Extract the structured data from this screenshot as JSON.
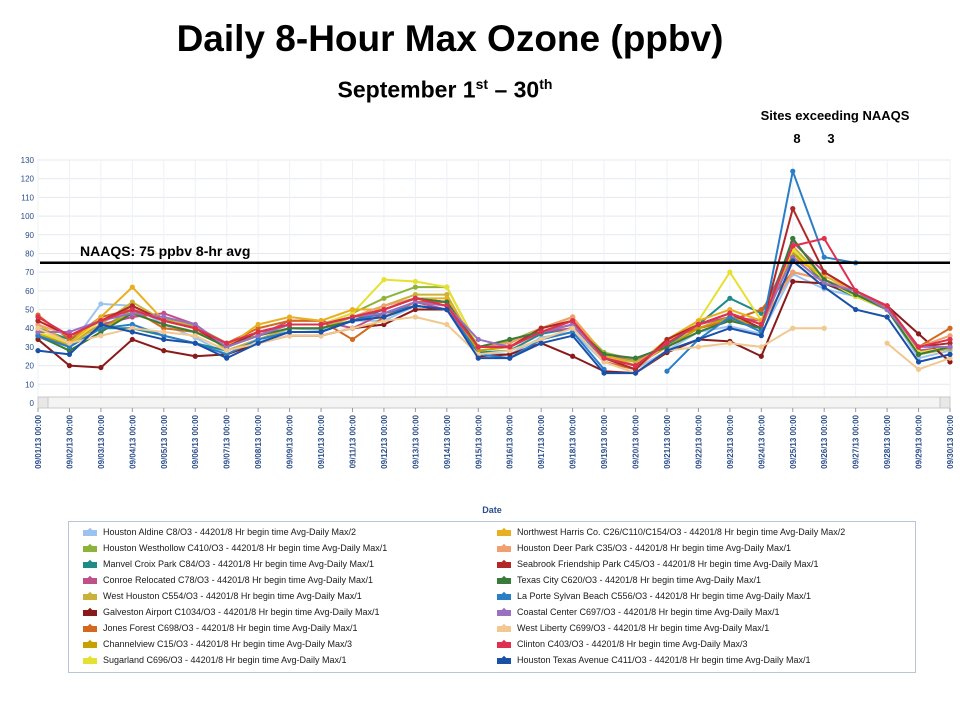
{
  "header": {
    "title": "Daily 8-Hour Max Ozone (ppbv)",
    "subtitle_main": "September 1",
    "subtitle_sup1": "st",
    "subtitle_mid": " – 30",
    "subtitle_sup2": "th",
    "exceed_label": "Sites exceeding NAAQS",
    "exceed_values": [
      "8",
      "3"
    ]
  },
  "chart_data": {
    "type": "line",
    "xlabel": "Date",
    "ylabel": "",
    "ylim": [
      0,
      130
    ],
    "yticks": [
      0,
      10,
      20,
      30,
      40,
      50,
      60,
      70,
      80,
      90,
      100,
      110,
      120,
      130
    ],
    "grid": true,
    "legend_position": "bottom",
    "categories": [
      "09/01/13 00:00",
      "09/02/13 00:00",
      "09/03/13 00:00",
      "09/04/13 00:00",
      "09/05/13 00:00",
      "09/06/13 00:00",
      "09/07/13 00:00",
      "09/08/13 00:00",
      "09/09/13 00:00",
      "09/10/13 00:00",
      "09/11/13 00:00",
      "09/12/13 00:00",
      "09/13/13 00:00",
      "09/14/13 00:00",
      "09/15/13 00:00",
      "09/16/13 00:00",
      "09/17/13 00:00",
      "09/18/13 00:00",
      "09/19/13 00:00",
      "09/20/13 00:00",
      "09/21/13 00:00",
      "09/22/13 00:00",
      "09/23/13 00:00",
      "09/24/13 00:00",
      "09/25/13 00:00",
      "09/26/13 00:00",
      "09/27/13 00:00",
      "09/28/13 00:00",
      "09/29/13 00:00",
      "09/30/13 00:00"
    ],
    "reference_line": {
      "value": 75,
      "label": "NAAQS:  75 ppbv   8-hr avg"
    },
    "series": [
      {
        "name": "Houston Aldine C8/O3 - 44201/8 Hr begin time Avg-Daily Max/2",
        "color": "#9cc3f0",
        "values": [
          35,
          30,
          53,
          52,
          42,
          35,
          26,
          32,
          40,
          39,
          44,
          44,
          52,
          50,
          27,
          26,
          35,
          38,
          22,
          18,
          28,
          38,
          41,
          37,
          69,
          61,
          57,
          50,
          24,
          28
        ]
      },
      {
        "name": "Houston Westhollow C410/O3 - 44201/8 Hr begin time Avg-Daily Max/1",
        "color": "#8db33a",
        "values": [
          36,
          30,
          40,
          50,
          45,
          41,
          32,
          36,
          42,
          42,
          48,
          56,
          62,
          62,
          30,
          33,
          40,
          44,
          27,
          23,
          30,
          40,
          44,
          40,
          88,
          66,
          58,
          51,
          28,
          30
        ]
      },
      {
        "name": "Manvel Croix Park C84/O3 - 44201/8 Hr begin time Avg-Daily Max/1",
        "color": "#1e8a8a",
        "values": [
          40,
          34,
          40,
          40,
          36,
          32,
          28,
          34,
          38,
          38,
          44,
          46,
          52,
          50,
          27,
          28,
          37,
          40,
          24,
          20,
          31,
          42,
          56,
          48,
          82,
          64,
          57,
          50,
          26,
          30
        ]
      },
      {
        "name": "Conroe Relocated C78/O3 - 44201/8 Hr begin time Avg-Daily Max/1",
        "color": "#c0508a",
        "values": [
          36,
          32,
          42,
          46,
          48,
          42,
          30,
          36,
          44,
          44,
          40,
          48,
          54,
          50,
          30,
          30,
          38,
          40,
          26,
          22,
          32,
          42,
          46,
          44,
          86,
          70,
          60,
          52,
          28,
          30
        ]
      },
      {
        "name": "West Houston C554/O3 - 44201/8 Hr begin time Avg-Daily Max/1",
        "color": "#c8b23a",
        "values": [
          37,
          31,
          42,
          54,
          44,
          42,
          28,
          34,
          40,
          40,
          46,
          52,
          58,
          58,
          28,
          30,
          38,
          42,
          25,
          22,
          30,
          40,
          45,
          40,
          84,
          66,
          58,
          51,
          26,
          29
        ]
      },
      {
        "name": "Galveston Airport C1034/O3 - 44201/8 Hr begin time Avg-Daily Max/1",
        "color": "#8a1a1a",
        "values": [
          34,
          20,
          19,
          34,
          28,
          25,
          26,
          32,
          36,
          36,
          40,
          42,
          50,
          50,
          25,
          26,
          32,
          25,
          17,
          16,
          27,
          34,
          33,
          25,
          65,
          64,
          58,
          52,
          37,
          22
        ]
      },
      {
        "name": "Jones Forest C698/O3 - 44201/8 Hr begin time Avg-Daily Max/1",
        "color": "#d2691e",
        "values": [
          47,
          34,
          46,
          50,
          40,
          38,
          32,
          40,
          44,
          44,
          34,
          46,
          54,
          54,
          30,
          30,
          40,
          46,
          22,
          18,
          34,
          40,
          44,
          50,
          70,
          66,
          58,
          52,
          30,
          40
        ]
      },
      {
        "name": "Channelview C15/O3 - 44201/8 Hr begin time Avg-Daily Max/3",
        "color": "#c8a000",
        "values": [
          38,
          30,
          40,
          48,
          42,
          38,
          30,
          36,
          42,
          42,
          46,
          50,
          56,
          54,
          28,
          30,
          38,
          44,
          26,
          20,
          30,
          40,
          46,
          40,
          80,
          66,
          58,
          50,
          26,
          30
        ]
      },
      {
        "name": "Sugarland C696/O3 - 44201/8 Hr begin time Avg-Daily Max/1",
        "color": "#e8e030",
        "values": [
          38,
          32,
          44,
          52,
          44,
          40,
          30,
          36,
          42,
          42,
          48,
          66,
          65,
          62,
          30,
          32,
          40,
          44,
          26,
          20,
          32,
          44,
          70,
          44,
          82,
          66,
          57,
          50,
          27,
          30
        ]
      },
      {
        "name": "Northwest Harris Co. C26/C110/C154/O3 - 44201/8 Hr begin time Avg-Daily Max/2",
        "color": "#e8b020",
        "values": [
          42,
          32,
          46,
          62,
          44,
          40,
          30,
          42,
          46,
          44,
          50,
          50,
          56,
          56,
          30,
          32,
          40,
          46,
          26,
          20,
          34,
          44,
          50,
          44,
          78,
          68,
          60,
          52,
          30,
          34
        ]
      },
      {
        "name": "Houston Deer Park C35/O3 - 44201/8 Hr begin time Avg-Daily Max/1",
        "color": "#f0a070",
        "values": [
          42,
          36,
          44,
          52,
          44,
          40,
          32,
          38,
          42,
          42,
          46,
          52,
          56,
          54,
          30,
          32,
          40,
          46,
          24,
          18,
          32,
          42,
          48,
          42,
          70,
          66,
          60,
          52,
          30,
          36
        ]
      },
      {
        "name": "Seabrook Friendship Park C45/O3 - 44201/8 Hr begin time Avg-Daily Max/1",
        "color": "#b02828",
        "values": [
          44,
          36,
          44,
          52,
          44,
          40,
          30,
          38,
          42,
          42,
          46,
          50,
          56,
          54,
          30,
          30,
          40,
          44,
          24,
          18,
          34,
          42,
          48,
          40,
          104,
          70,
          60,
          52,
          30,
          32
        ]
      },
      {
        "name": "Texas City C620/O3 - 44201/8 Hr begin time Avg-Daily Max/1",
        "color": "#3a7a3a",
        "values": [
          36,
          28,
          38,
          48,
          42,
          38,
          30,
          36,
          40,
          40,
          44,
          50,
          56,
          54,
          30,
          34,
          38,
          42,
          26,
          24,
          30,
          38,
          44,
          40,
          88,
          66,
          58,
          50,
          26,
          30
        ]
      },
      {
        "name": "La Porte Sylvan Beach C556/O3 - 44201/8 Hr begin time Avg-Daily Max/1",
        "color": "#2a7ec8",
        "values": [
          36,
          30,
          40,
          42,
          36,
          32,
          26,
          34,
          38,
          38,
          44,
          48,
          52,
          50,
          26,
          24,
          34,
          38,
          18,
          null,
          17,
          34,
          46,
          38,
          124,
          78,
          75,
          null,
          null,
          null
        ]
      },
      {
        "name": "Coastal Center C697/O3 - 44201/8 Hr begin time Avg-Daily Max/1",
        "color": "#9a70c0",
        "values": [
          38,
          38,
          44,
          48,
          46,
          42,
          30,
          36,
          42,
          42,
          46,
          48,
          54,
          52,
          34,
          30,
          38,
          42,
          24,
          20,
          32,
          42,
          48,
          42,
          78,
          64,
          60,
          50,
          30,
          30
        ]
      },
      {
        "name": "West Liberty C699/O3 - 44201/8 Hr begin time Avg-Daily Max/1",
        "color": "#f0c890",
        "values": [
          40,
          32,
          36,
          40,
          38,
          36,
          28,
          32,
          36,
          36,
          40,
          44,
          46,
          42,
          26,
          28,
          34,
          40,
          22,
          16,
          28,
          30,
          32,
          30,
          40,
          40,
          null,
          32,
          18,
          24
        ]
      },
      {
        "name": "Clinton C403/O3 - 44201/8 Hr begin time Avg-Daily Max/3",
        "color": "#e03050",
        "values": [
          46,
          36,
          44,
          50,
          44,
          40,
          32,
          38,
          42,
          42,
          46,
          50,
          56,
          52,
          30,
          30,
          38,
          44,
          24,
          20,
          32,
          42,
          48,
          42,
          84,
          88,
          60,
          52,
          30,
          34
        ]
      },
      {
        "name": "Houston Texas Avenue C411/O3 - 44201/8 Hr begin time Avg-Daily Max/1",
        "color": "#1a50a8",
        "values": [
          28,
          26,
          42,
          38,
          34,
          32,
          24,
          32,
          38,
          38,
          44,
          46,
          52,
          50,
          24,
          24,
          32,
          36,
          16,
          16,
          28,
          34,
          40,
          36,
          76,
          62,
          50,
          46,
          22,
          26
        ]
      }
    ]
  }
}
